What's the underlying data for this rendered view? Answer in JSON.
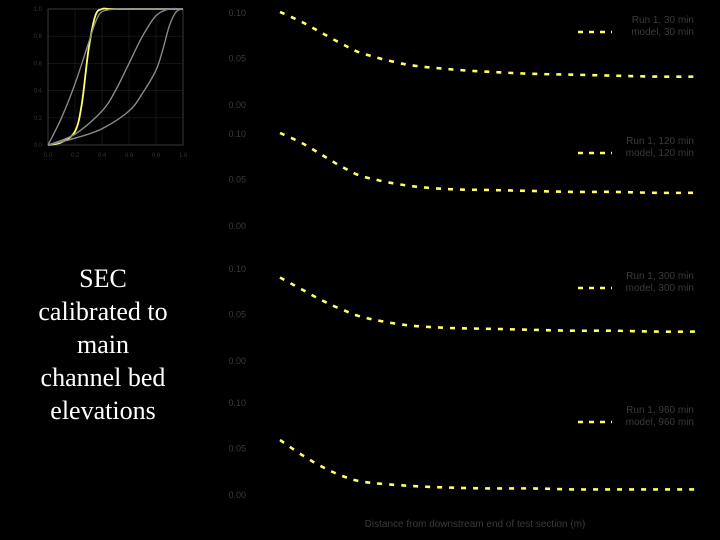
{
  "caption": {
    "lines": [
      "SEC",
      "calibrated to",
      "main",
      "channel bed",
      "elevations"
    ]
  },
  "colors": {
    "accent": "#ffff66",
    "gray_curve": "#8a8a8a",
    "dim_text": "#3a3a3a"
  },
  "chart_data": [
    {
      "type": "line",
      "title": "",
      "xlabel": "",
      "ylabel": "",
      "xlim": [
        0.0,
        1.0
      ],
      "ylim": [
        0.0,
        1.0
      ],
      "xticks": [
        "0.0",
        "0.2",
        "0.4",
        "0.6",
        "0.8",
        "1.0"
      ],
      "yticks": [
        "0.0",
        "0.2",
        "0.4",
        "0.6",
        "0.8",
        "1.0"
      ],
      "grid": true,
      "series": [
        {
          "name": "",
          "color": "#ffff66",
          "x": [
            0.0,
            0.1,
            0.2,
            0.25,
            0.3,
            0.35,
            0.4,
            0.45,
            0.5,
            0.6,
            1.0
          ],
          "y": [
            0.0,
            0.02,
            0.1,
            0.3,
            0.7,
            0.95,
            1.0,
            1.0,
            1.0,
            1.0,
            1.0
          ]
        },
        {
          "name": "",
          "color": "#8a8a8a",
          "x": [
            0.0,
            0.1,
            0.2,
            0.3,
            0.35,
            0.4,
            0.5,
            0.6,
            0.8,
            1.0
          ],
          "y": [
            0.0,
            0.2,
            0.45,
            0.75,
            0.9,
            0.98,
            1.0,
            1.0,
            1.0,
            1.0
          ]
        },
        {
          "name": "",
          "color": "#8a8a8a",
          "x": [
            0.0,
            0.2,
            0.4,
            0.5,
            0.6,
            0.7,
            0.8,
            0.9,
            1.0
          ],
          "y": [
            0.0,
            0.08,
            0.25,
            0.4,
            0.6,
            0.8,
            0.95,
            1.0,
            1.0
          ]
        },
        {
          "name": "",
          "color": "#8a8a8a",
          "x": [
            0.0,
            0.2,
            0.4,
            0.6,
            0.7,
            0.8,
            0.85,
            0.9,
            0.95,
            1.0
          ],
          "y": [
            0.0,
            0.05,
            0.12,
            0.25,
            0.38,
            0.55,
            0.7,
            0.88,
            0.98,
            1.0
          ]
        }
      ]
    },
    {
      "type": "line",
      "title": "",
      "ylabel": "",
      "xlabel": "Distance from downstream end of test section (m)",
      "panels": [
        {
          "yticks": [
            "0.10",
            "0.05",
            "0.00"
          ],
          "ylim": [
            0.0,
            0.1
          ],
          "legend": [
            "Run 1, 30 min",
            "model, 30 min"
          ],
          "x": [
            0.0,
            0.05,
            0.1,
            0.15,
            0.2,
            0.3,
            0.4,
            0.5,
            0.6,
            0.7,
            0.8,
            0.9,
            1.0
          ],
          "y": [
            0.1,
            0.09,
            0.078,
            0.066,
            0.056,
            0.045,
            0.04,
            0.037,
            0.035,
            0.034,
            0.033,
            0.032,
            0.032
          ]
        },
        {
          "yticks": [
            "0.10",
            "0.05",
            "0.00"
          ],
          "ylim": [
            0.0,
            0.1
          ],
          "legend": [
            "Run 1, 120 min",
            "model, 120 min"
          ],
          "x": [
            0.0,
            0.05,
            0.1,
            0.15,
            0.2,
            0.3,
            0.4,
            0.5,
            0.6,
            0.7,
            0.8,
            0.9,
            1.0
          ],
          "y": [
            0.1,
            0.09,
            0.077,
            0.064,
            0.054,
            0.045,
            0.041,
            0.04,
            0.039,
            0.038,
            0.038,
            0.037,
            0.037
          ]
        },
        {
          "yticks": [
            "0.10",
            "0.05",
            "0.00"
          ],
          "ylim": [
            0.0,
            0.1
          ],
          "legend": [
            "Run 1, 300 min",
            "model, 300 min"
          ],
          "x": [
            0.0,
            0.05,
            0.1,
            0.15,
            0.2,
            0.3,
            0.4,
            0.5,
            0.6,
            0.7,
            0.8,
            0.9,
            1.0
          ],
          "y": [
            0.09,
            0.078,
            0.066,
            0.056,
            0.048,
            0.04,
            0.037,
            0.036,
            0.035,
            0.034,
            0.034,
            0.033,
            0.033
          ]
        },
        {
          "yticks": [
            "0.10",
            "0.05",
            "0.00"
          ],
          "ylim": [
            0.0,
            0.1
          ],
          "legend": [
            "Run 1, 960 min",
            "model, 960 min"
          ],
          "x": [
            0.0,
            0.05,
            0.1,
            0.15,
            0.2,
            0.3,
            0.4,
            0.5,
            0.6,
            0.7,
            0.8,
            0.9,
            1.0
          ],
          "y": [
            0.06,
            0.045,
            0.032,
            0.022,
            0.016,
            0.012,
            0.01,
            0.009,
            0.009,
            0.008,
            0.008,
            0.008,
            0.008
          ]
        }
      ]
    }
  ]
}
